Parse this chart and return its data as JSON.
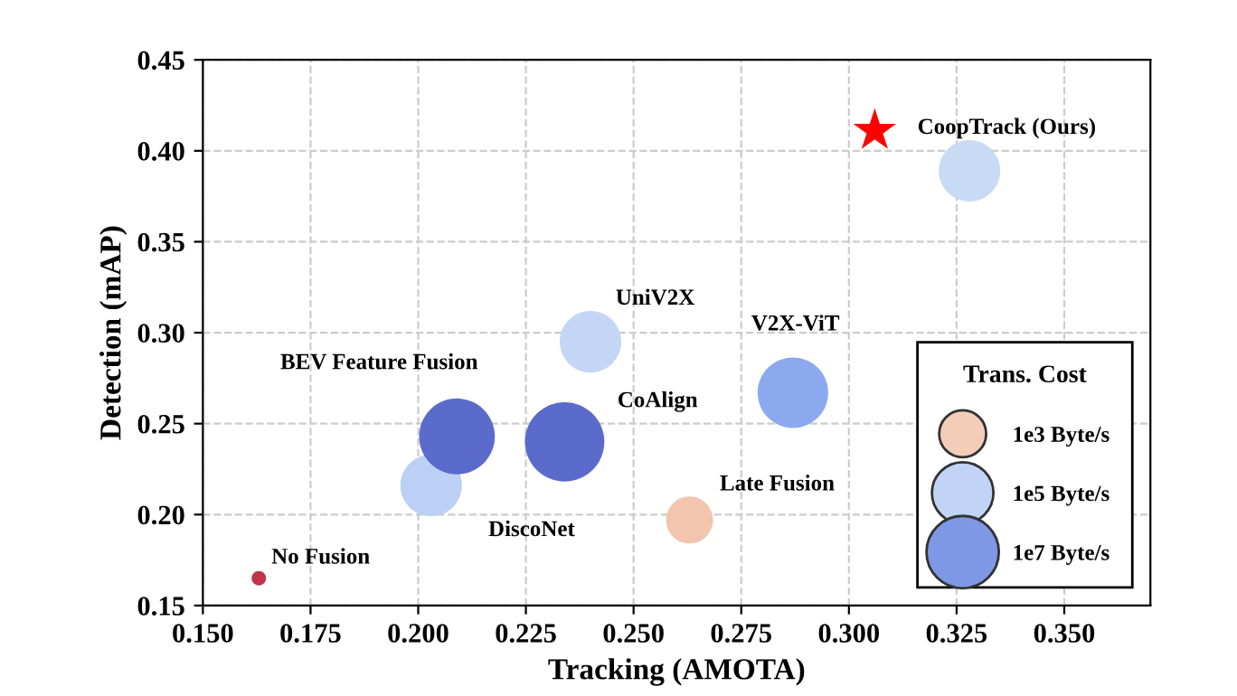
{
  "chart_data": {
    "type": "bubble",
    "xlabel": "Tracking (AMOTA)",
    "ylabel": "Detection (mAP)",
    "xlim": [
      0.15,
      0.37
    ],
    "xticks": [
      {
        "value": 0.15,
        "label": "0.150"
      },
      {
        "value": 0.175,
        "label": "0.175"
      },
      {
        "value": 0.2,
        "label": "0.200"
      },
      {
        "value": 0.225,
        "label": "0.225"
      },
      {
        "value": 0.25,
        "label": "0.250"
      },
      {
        "value": 0.275,
        "label": "0.275"
      },
      {
        "value": 0.3,
        "label": "0.300"
      },
      {
        "value": 0.325,
        "label": "0.325"
      },
      {
        "value": 0.35,
        "label": "0.350"
      }
    ],
    "ylim": [
      0.15,
      0.45
    ],
    "yticks": [
      {
        "value": 0.15,
        "label": "0.15"
      },
      {
        "value": 0.2,
        "label": "0.20"
      },
      {
        "value": 0.25,
        "label": "0.25"
      },
      {
        "value": 0.3,
        "label": "0.30"
      },
      {
        "value": 0.35,
        "label": "0.35"
      },
      {
        "value": 0.4,
        "label": "0.40"
      },
      {
        "value": 0.45,
        "label": "0.45"
      }
    ],
    "grid": true,
    "line_style": "dashed",
    "legend": "lower right",
    "legend_title": "Trans. Cost",
    "size_legend": [
      {
        "value": 0.35,
        "label": "1e3 Byte/s"
      },
      {
        "value": 0.6,
        "label": "1e5 Byte/s"
      },
      {
        "value": 0.83,
        "label": "1e7 Byte/s"
      }
    ],
    "series": [
      {
        "name": "No Fusion",
        "color": "#c1344a",
        "x": [
          0.163
        ],
        "values": [
          0.165
        ],
        "sizes": [
          0.033
        ]
      },
      {
        "name": "DiscoNet",
        "color": "#bcd0f5",
        "x": [
          0.203
        ],
        "values": [
          0.216
        ],
        "sizes": [
          0.6
        ]
      },
      {
        "name": "BEV Feature Fusion",
        "color": "#5a6bcb",
        "x": [
          0.209
        ],
        "values": [
          0.243
        ],
        "sizes": [
          0.91
        ]
      },
      {
        "name": "CoAlign",
        "color": "#5a6bcb",
        "x": [
          0.234
        ],
        "values": [
          0.24
        ],
        "sizes": [
          1
        ]
      },
      {
        "name": "UniV2X",
        "color": "#c4d6f5",
        "x": [
          0.24
        ],
        "values": [
          0.295
        ],
        "sizes": [
          0.6
        ]
      },
      {
        "name": "Late Fusion",
        "color": "#f3c4ae",
        "x": [
          0.263
        ],
        "values": [
          0.197
        ],
        "sizes": [
          0.35
        ]
      },
      {
        "name": "V2X-ViT",
        "color": "#8ca9f0",
        "x": [
          0.287
        ],
        "values": [
          0.267
        ],
        "sizes": [
          0.79
        ]
      },
      {
        "color": "#c9daf4",
        "x": [
          0.328
        ],
        "values": [
          0.389
        ],
        "sizes": [
          0.6
        ]
      },
      {
        "name": "CoopTrack (Ours)",
        "type": "scatter",
        "marker": "star",
        "color": "#ff0000",
        "x": [
          0.306
        ],
        "values": [
          0.411
        ]
      }
    ]
  }
}
